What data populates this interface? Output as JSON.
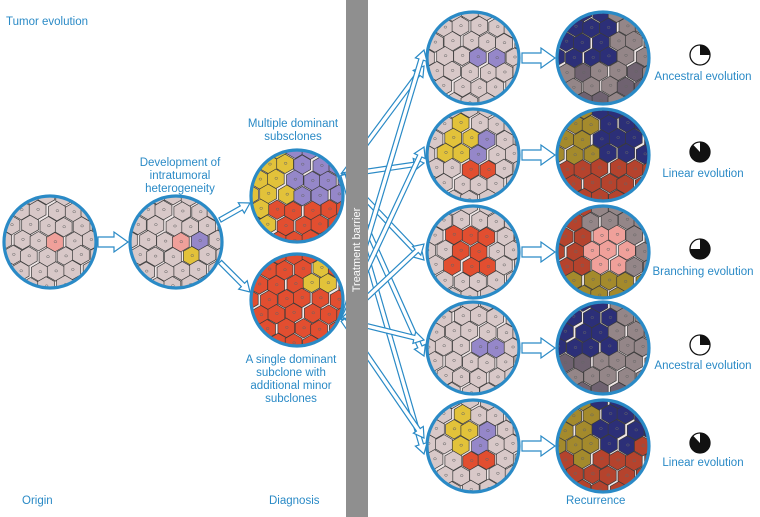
{
  "title": "Tumor evolution",
  "stages": {
    "origin": "Origin",
    "diagnosis": "Diagnosis",
    "recurrence": "Recurrence"
  },
  "labels": {
    "development": "Development of intratumoral heterogeneity",
    "multiple": "Multiple dominant subsclones",
    "single": "A single dominant subclone with additional minor subclones"
  },
  "barrier": "Treatment barrier",
  "outcomes": [
    {
      "label": "Ancestral evolution",
      "pie_fraction": 0.25
    },
    {
      "label": "Linear evolution",
      "pie_fraction": 0.88
    },
    {
      "label": "Branching evolution",
      "pie_fraction": 0.75
    },
    {
      "label": "Ancestral evolution",
      "pie_fraction": 0.25
    },
    {
      "label": "Linear evolution",
      "pie_fraction": 0.88
    }
  ],
  "colors": {
    "accent": "#2a8ac6",
    "ring": "#2a8ac6",
    "normal": "#d8c8c8",
    "pink": "#f0a09a",
    "yellow": "#e2c23a",
    "purple": "#9587c9",
    "red": "#e24e30",
    "navy": "#2c2f78",
    "olive": "#a48a2c",
    "darkred": "#b5432d",
    "taupe": "#948688",
    "barrier": "#8f8f8f"
  }
}
